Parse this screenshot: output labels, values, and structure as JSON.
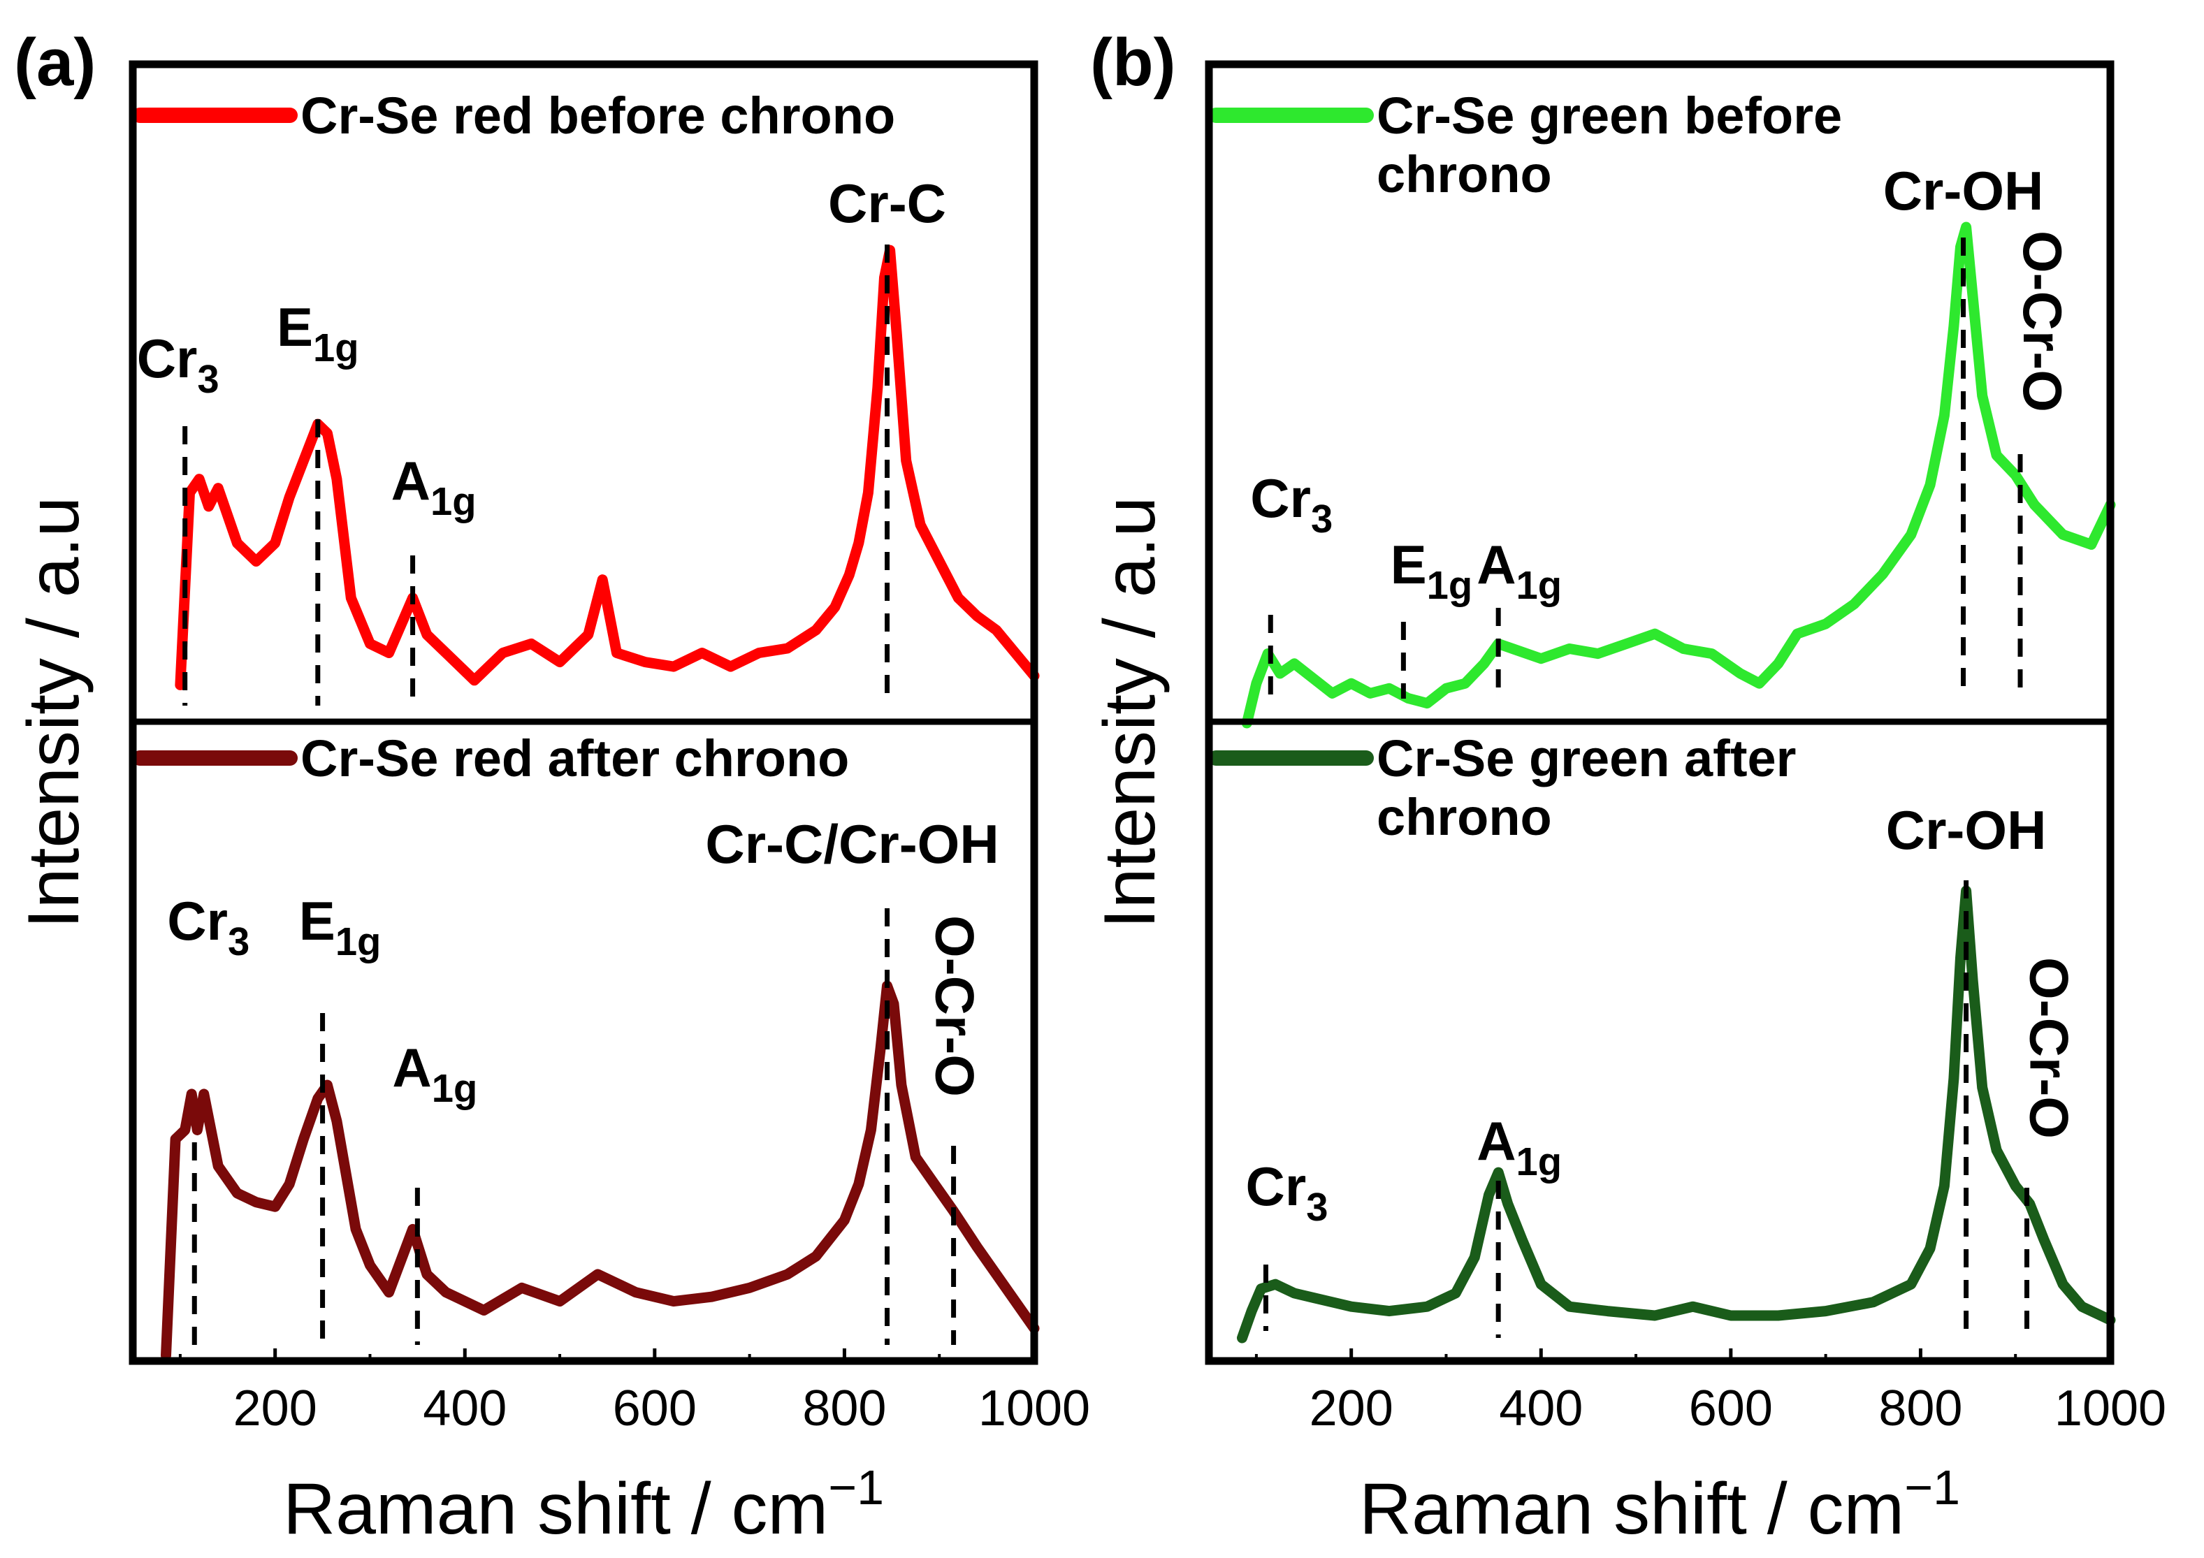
{
  "chart_data": [
    {
      "panel_label": "(a)",
      "type": "line",
      "x_unit_note": "x axis shared by both stacked sub-plots",
      "xlabel": "Raman shift / cm",
      "xlabel_sup": "−1",
      "ylabel": "Intensity / a.u",
      "xlim": [
        50,
        1000
      ],
      "xticks": [
        200,
        400,
        600,
        800,
        1000
      ],
      "xtick_labels": [
        "200",
        "400",
        "600",
        "800",
        "1000"
      ],
      "subplots": [
        {
          "legend": "Cr-Se red before chrono",
          "color": "#ff0000",
          "ylim": [
            0,
            1
          ],
          "x": [
            100,
            110,
            120,
            130,
            140,
            160,
            180,
            200,
            215,
            230,
            245,
            255,
            265,
            280,
            300,
            320,
            345,
            360,
            380,
            410,
            440,
            470,
            500,
            530,
            545,
            560,
            590,
            620,
            650,
            680,
            710,
            740,
            770,
            790,
            805,
            815,
            825,
            835,
            842,
            848,
            855,
            865,
            880,
            900,
            920,
            940,
            960,
            980,
            1000
          ],
          "y": [
            0.03,
            0.45,
            0.48,
            0.42,
            0.46,
            0.34,
            0.3,
            0.34,
            0.44,
            0.52,
            0.6,
            0.58,
            0.48,
            0.22,
            0.12,
            0.1,
            0.22,
            0.14,
            0.1,
            0.04,
            0.1,
            0.12,
            0.08,
            0.14,
            0.26,
            0.1,
            0.08,
            0.07,
            0.1,
            0.07,
            0.1,
            0.11,
            0.15,
            0.2,
            0.27,
            0.34,
            0.45,
            0.68,
            0.92,
            0.98,
            0.8,
            0.52,
            0.38,
            0.3,
            0.22,
            0.18,
            0.15,
            0.1,
            0.05
          ],
          "annotations": [
            {
              "label": "Cr",
              "sub": "3",
              "x": 105
            },
            {
              "label": "E",
              "sub": "1g",
              "x": 245
            },
            {
              "label": "A",
              "sub": "1g",
              "x": 345
            },
            {
              "label": "Cr-C",
              "sub": "",
              "x": 845
            }
          ]
        },
        {
          "legend": "Cr-Se red after chrono",
          "color": "#7a0a0a",
          "ylim": [
            0,
            1
          ],
          "x": [
            85,
            95,
            105,
            112,
            118,
            125,
            140,
            160,
            180,
            200,
            215,
            230,
            245,
            255,
            265,
            285,
            300,
            320,
            345,
            360,
            380,
            420,
            460,
            500,
            540,
            580,
            620,
            660,
            700,
            740,
            770,
            800,
            815,
            828,
            838,
            845,
            852,
            860,
            875,
            895,
            915,
            940,
            960,
            980,
            1000
          ],
          "y": [
            0.0,
            0.48,
            0.5,
            0.58,
            0.5,
            0.58,
            0.42,
            0.36,
            0.34,
            0.33,
            0.38,
            0.48,
            0.57,
            0.6,
            0.52,
            0.28,
            0.2,
            0.14,
            0.28,
            0.18,
            0.14,
            0.1,
            0.15,
            0.12,
            0.18,
            0.14,
            0.12,
            0.13,
            0.15,
            0.18,
            0.22,
            0.3,
            0.38,
            0.5,
            0.68,
            0.82,
            0.78,
            0.6,
            0.44,
            0.38,
            0.32,
            0.24,
            0.18,
            0.12,
            0.06
          ],
          "annotations": [
            {
              "label": "Cr",
              "sub": "3",
              "x": 115
            },
            {
              "label": "E",
              "sub": "1g",
              "x": 250
            },
            {
              "label": "A",
              "sub": "1g",
              "x": 350
            },
            {
              "label": "Cr-C/Cr-OH",
              "sub": "",
              "x": 845
            },
            {
              "label": "O-Cr-O",
              "sub": "",
              "x": 915
            }
          ]
        }
      ]
    },
    {
      "panel_label": "(b)",
      "type": "line",
      "xlabel": "Raman shift / cm",
      "xlabel_sup": "−1",
      "ylabel": "Intensity / a.u",
      "xlim": [
        50,
        1000
      ],
      "xticks": [
        200,
        400,
        600,
        800,
        1000
      ],
      "xtick_labels": [
        "200",
        "400",
        "600",
        "800",
        "1000"
      ],
      "subplots": [
        {
          "legend": "Cr-Se green before",
          "legend_line2": "chrono",
          "color": "#2ee82e",
          "ylim": [
            0,
            1
          ],
          "x": [
            90,
            100,
            112,
            125,
            140,
            160,
            180,
            200,
            220,
            240,
            260,
            280,
            300,
            320,
            340,
            355,
            370,
            400,
            430,
            460,
            490,
            520,
            550,
            580,
            610,
            630,
            650,
            670,
            700,
            730,
            760,
            790,
            810,
            825,
            835,
            842,
            848,
            855,
            865,
            880,
            900,
            920,
            950,
            980,
            1000
          ],
          "y": [
            0.0,
            0.08,
            0.14,
            0.1,
            0.12,
            0.09,
            0.06,
            0.08,
            0.06,
            0.07,
            0.05,
            0.04,
            0.07,
            0.08,
            0.12,
            0.16,
            0.15,
            0.13,
            0.15,
            0.14,
            0.16,
            0.18,
            0.15,
            0.14,
            0.1,
            0.08,
            0.12,
            0.18,
            0.2,
            0.24,
            0.3,
            0.38,
            0.48,
            0.62,
            0.8,
            0.96,
            1.0,
            0.86,
            0.66,
            0.54,
            0.5,
            0.44,
            0.38,
            0.36,
            0.44
          ],
          "annotations": [
            {
              "label": "Cr",
              "sub": "3",
              "x": 115
            },
            {
              "label": "E",
              "sub": "1g",
              "x": 255
            },
            {
              "label": "A",
              "sub": "1g",
              "x": 355
            },
            {
              "label": "Cr-OH",
              "sub": "",
              "x": 845
            },
            {
              "label": "O-Cr-O",
              "sub": "",
              "x": 905
            }
          ]
        },
        {
          "legend": "Cr-Se green after",
          "legend_line2": "chrono",
          "color": "#1a5c1a",
          "ylim": [
            0,
            1
          ],
          "x": [
            85,
            95,
            105,
            120,
            140,
            160,
            200,
            240,
            280,
            310,
            330,
            345,
            355,
            365,
            380,
            400,
            430,
            470,
            520,
            560,
            600,
            650,
            700,
            750,
            790,
            810,
            825,
            835,
            842,
            848,
            855,
            865,
            880,
            900,
            915,
            930,
            950,
            970,
            1000
          ],
          "y": [
            0.0,
            0.06,
            0.11,
            0.12,
            0.1,
            0.09,
            0.07,
            0.06,
            0.07,
            0.1,
            0.18,
            0.32,
            0.37,
            0.3,
            0.22,
            0.12,
            0.07,
            0.06,
            0.05,
            0.07,
            0.05,
            0.05,
            0.06,
            0.08,
            0.12,
            0.2,
            0.34,
            0.58,
            0.85,
            1.0,
            0.8,
            0.56,
            0.42,
            0.34,
            0.3,
            0.22,
            0.12,
            0.07,
            0.04
          ],
          "annotations": [
            {
              "label": "Cr",
              "sub": "3",
              "x": 110
            },
            {
              "label": "A",
              "sub": "1g",
              "x": 355
            },
            {
              "label": "Cr-OH",
              "sub": "",
              "x": 848
            },
            {
              "label": "O-Cr-O",
              "sub": "",
              "x": 912
            }
          ]
        }
      ]
    }
  ]
}
